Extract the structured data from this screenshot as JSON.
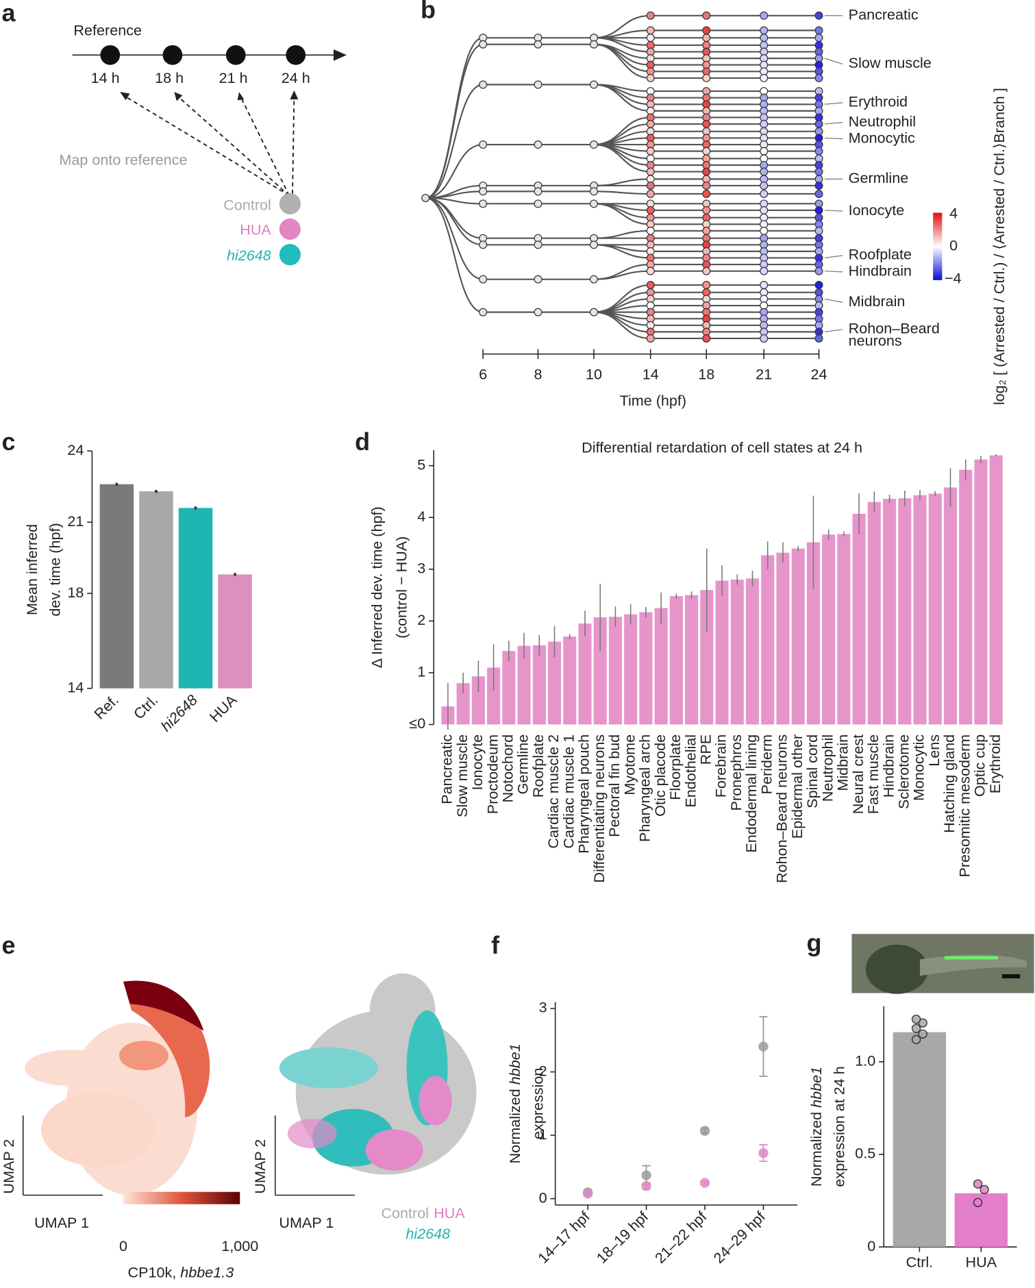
{
  "panel_labels": [
    "a",
    "b",
    "c",
    "d",
    "e",
    "f",
    "g"
  ],
  "panel_a": {
    "title": "Reference",
    "times": [
      "14 h",
      "18 h",
      "21 h",
      "24 h"
    ],
    "map_label": "Map onto reference",
    "conditions": [
      "Control",
      "HUA",
      "hi2648"
    ]
  },
  "panel_b": {
    "cell_types": [
      [
        "Pancreatic"
      ],
      [
        "Slow muscle"
      ],
      [
        "Erythroid"
      ],
      [
        "Neutrophil"
      ],
      [
        "Monocytic"
      ],
      [
        "Germline"
      ],
      [
        "Ionocyte"
      ],
      [
        "Roofplate"
      ],
      [
        "Hindbrain"
      ],
      [
        "Midbrain"
      ],
      [
        "Rohon–Beard",
        "neurons"
      ]
    ],
    "time_ticks": [
      "6",
      "8",
      "10",
      "14",
      "18",
      "21",
      "24"
    ],
    "xlabel": "Time (hpf)",
    "colorbar_ticks": [
      "4",
      "0",
      "−4"
    ],
    "colorbar_label": "log₂ [ (Arrested / Ctrl.) / ⟨Arrested / Ctrl.⟩Branch ]"
  },
  "panel_e": {
    "axis_labels": [
      "UMAP 2",
      "UMAP 1",
      "UMAP 2",
      "UMAP 1"
    ],
    "colorbar_ticks": [
      "0",
      "1,000"
    ],
    "colorbar_label": [
      "CP10k, ",
      "hbbe1.3"
    ],
    "legend": [
      "Control",
      "HUA",
      "hi2648"
    ]
  },
  "chart_data": [
    {
      "type": "bar",
      "ylabel": [
        [
          "Mean inferred"
        ],
        [
          "dev. time (hpf)"
        ]
      ],
      "categories": [
        "Ref.",
        "Ctrl.",
        "hi2648",
        "HUA"
      ],
      "category_styles": [
        "normal",
        "normal",
        "italic",
        "normal"
      ],
      "values": [
        22.6,
        22.3,
        21.6,
        18.8
      ],
      "errors": [
        0.06,
        0.06,
        0.06,
        0.06
      ],
      "colors": [
        "#7a7a7a",
        "#a8a8a8",
        "#1fb5b3",
        "#dd90c0"
      ],
      "ylim": [
        14,
        24
      ],
      "yticks": [
        14,
        18,
        21,
        24
      ]
    },
    {
      "type": "bar",
      "title": "Differential retardation of cell states at 24 h",
      "ylabel": [
        [
          "Δ Inferred dev. time (hpf)"
        ],
        [
          "(control − HUA)"
        ]
      ],
      "categories": [
        "Pancreatic",
        "Slow muscle",
        "Ionocyte",
        "Proctodeum",
        "Notochord",
        "Germline",
        "Roofplate",
        "Cardiac muscle 2",
        "Cardiac muscle 1",
        "Pharyngeal pouch",
        "Differentiating neurons",
        "Pectoral fin bud",
        "Myotome",
        "Pharyngeal arch",
        "Otic placode",
        "Floorplate",
        "Endothelial",
        "RPE",
        "Forebrain",
        "Pronephros",
        "Endodermal lining",
        "Periderm",
        "Rohon–Beard neurons",
        "Epidermal other",
        "Spinal cord",
        "Neutrophil",
        "Midbrain",
        "Neural crest",
        "Fast muscle",
        "Hindbrain",
        "Sclerotome",
        "Monocytic",
        "Lens",
        "Hatching gland",
        "Presomitic mesoderm",
        "Optic cup",
        "Erythroid"
      ],
      "values": [
        0.35,
        0.8,
        0.93,
        1.1,
        1.42,
        1.52,
        1.53,
        1.6,
        1.7,
        1.95,
        2.07,
        2.08,
        2.13,
        2.17,
        2.25,
        2.48,
        2.5,
        2.6,
        2.78,
        2.8,
        2.82,
        3.27,
        3.32,
        3.4,
        3.52,
        3.67,
        3.68,
        4.07,
        4.3,
        4.36,
        4.37,
        4.43,
        4.46,
        4.58,
        4.92,
        5.12,
        5.2
      ],
      "errors": [
        0.45,
        0.2,
        0.3,
        0.45,
        0.2,
        0.25,
        0.2,
        0.3,
        0.05,
        0.25,
        0.65,
        0.2,
        0.2,
        0.1,
        0.3,
        0.05,
        0.07,
        0.8,
        0.3,
        0.1,
        0.15,
        0.27,
        0.2,
        0.05,
        0.9,
        0.1,
        0.05,
        0.4,
        0.2,
        0.08,
        0.15,
        0.1,
        0.05,
        0.37,
        0.2,
        0.07,
        0.02
      ],
      "color": "#e695cb",
      "ylim": [
        0,
        5.3
      ],
      "yticks": [
        {
          "value": 0,
          "label": "≤0"
        },
        1,
        2,
        3,
        4,
        5
      ]
    },
    {
      "type": "scatter",
      "ylabel": [
        [
          "Normalized ",
          "hbbe1"
        ],
        [
          "expression"
        ]
      ],
      "categories": [
        "14–17 hpf",
        "18–19 hpf",
        "21–22 hpf",
        "24–29 hpf"
      ],
      "series": [
        {
          "name": "Control",
          "color": "#9a9a9a",
          "values": [
            0.1,
            0.37,
            1.07,
            2.4
          ],
          "errors": [
            0.03,
            0.15,
            0.04,
            0.47
          ]
        },
        {
          "name": "HUA",
          "color": "#dd88c4",
          "values": [
            0.08,
            0.2,
            0.25,
            0.72
          ],
          "errors": [
            0.03,
            0.05,
            0.02,
            0.13
          ]
        }
      ],
      "ylim": [
        -0.1,
        3.1
      ],
      "yticks": [
        0,
        1,
        2,
        3
      ]
    },
    {
      "type": "bar",
      "ylabel": [
        [
          "Normalized ",
          "hbbe1"
        ],
        [
          "expression at 24 h"
        ]
      ],
      "categories": [
        "Ctrl.",
        "HUA"
      ],
      "category_styles": [
        "normal",
        "normal"
      ],
      "values": [
        1.16,
        0.29
      ],
      "colors": [
        "#a8a8a8",
        "#e37fca"
      ],
      "dots": [
        [
          1.12,
          1.15,
          1.18,
          1.21,
          1.23
        ],
        [
          0.24,
          0.31,
          0.34
        ]
      ],
      "ylim": [
        0,
        1.3
      ],
      "yticks": [
        0,
        0.5,
        {
          "value": 1,
          "label": "1.0"
        }
      ]
    }
  ]
}
